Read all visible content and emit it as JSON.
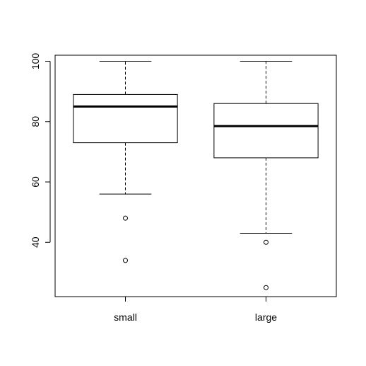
{
  "chart_data": {
    "type": "boxplot",
    "categories": [
      "small",
      "large"
    ],
    "boxes": [
      {
        "name": "small",
        "whisker_low": 56,
        "q1": 73,
        "median": 85,
        "q3": 89,
        "whisker_high": 100,
        "outliers": [
          48,
          34
        ]
      },
      {
        "name": "large",
        "whisker_low": 43,
        "q1": 68,
        "median": 78.5,
        "q3": 86,
        "whisker_high": 100,
        "outliers": [
          40,
          25
        ]
      }
    ],
    "y_ticks": [
      40,
      60,
      80,
      100
    ],
    "ylim": [
      22,
      102
    ],
    "title": "",
    "xlabel": "",
    "ylabel": "",
    "grid": false,
    "colors": {
      "stroke": "#000000",
      "background": "#ffffff"
    }
  }
}
